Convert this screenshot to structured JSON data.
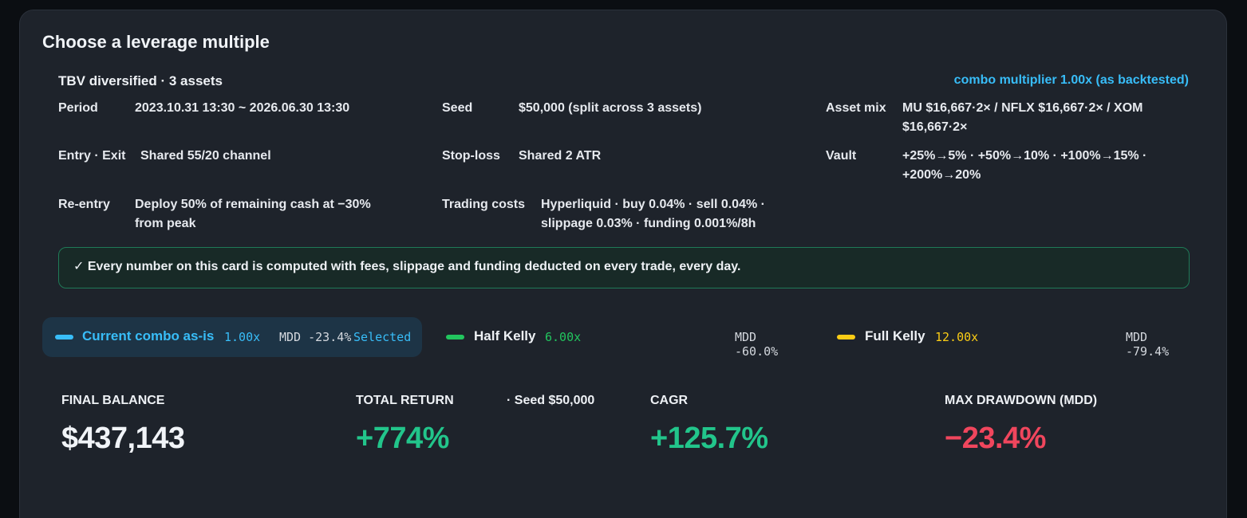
{
  "card": {
    "title": "Choose a leverage multiple",
    "strategy_name": "TBV diversified · 3 assets",
    "combo_multiplier": "combo multiplier 1.00x (as backtested)"
  },
  "details": {
    "period": {
      "label": "Period",
      "value": "2023.10.31 13:30 ~ 2026.06.30 13:30"
    },
    "seed": {
      "label": "Seed",
      "value": "$50,000 (split across 3 assets)"
    },
    "asset_mix": {
      "label": "Asset mix",
      "value_line1": "MU $16,667·2× / NFLX $16,667·2× / XOM",
      "value_line2": "$16,667·2×"
    },
    "entry_exit": {
      "label": "Entry · Exit",
      "value": "Shared 55/20 channel"
    },
    "stop_loss": {
      "label": "Stop-loss",
      "value": "Shared 2 ATR"
    },
    "vault": {
      "label": "Vault",
      "value_line1": "+25%→5% · +50%→10% · +100%→15% ·",
      "value_line2": "+200%→20%"
    },
    "re_entry": {
      "label": "Re-entry",
      "value_line1": "Deploy 50% of remaining cash at −30%",
      "value_line2": "from peak"
    },
    "trading_costs": {
      "label": "Trading costs",
      "value_line1": "Hyperliquid · buy 0.04% · sell 0.04% ·",
      "value_line2": "slippage 0.03% · funding 0.001%/8h"
    }
  },
  "notice": "✓ Every number on this card is computed with fees, slippage and funding deducted on every trade, every day.",
  "options": [
    {
      "name": "Current combo as-is",
      "multiplier": "1.00x",
      "mdd": "MDD -23.4%",
      "selected_label": "Selected",
      "color": "#38bdf8",
      "selected": true
    },
    {
      "name": "Half Kelly",
      "multiplier": "6.00x",
      "mdd": "MDD -60.0%",
      "color": "#22c55e",
      "selected": false
    },
    {
      "name": "Full Kelly",
      "multiplier": "12.00x",
      "mdd": "MDD -79.4%",
      "color": "#facc15",
      "selected": false
    }
  ],
  "stats": {
    "final_balance": {
      "label": "FINAL BALANCE",
      "value": "$437,143",
      "color": "#f1f4f8"
    },
    "total_return": {
      "label": "TOTAL RETURN",
      "note": "· Seed $50,000",
      "value": "+774%",
      "color": "#22c58b"
    },
    "cagr": {
      "label": "CAGR",
      "value": "+125.7%",
      "color": "#22c58b"
    },
    "mdd": {
      "label": "MAX DRAWDOWN (MDD)",
      "value": "−23.4%",
      "color": "#f0465d"
    }
  }
}
